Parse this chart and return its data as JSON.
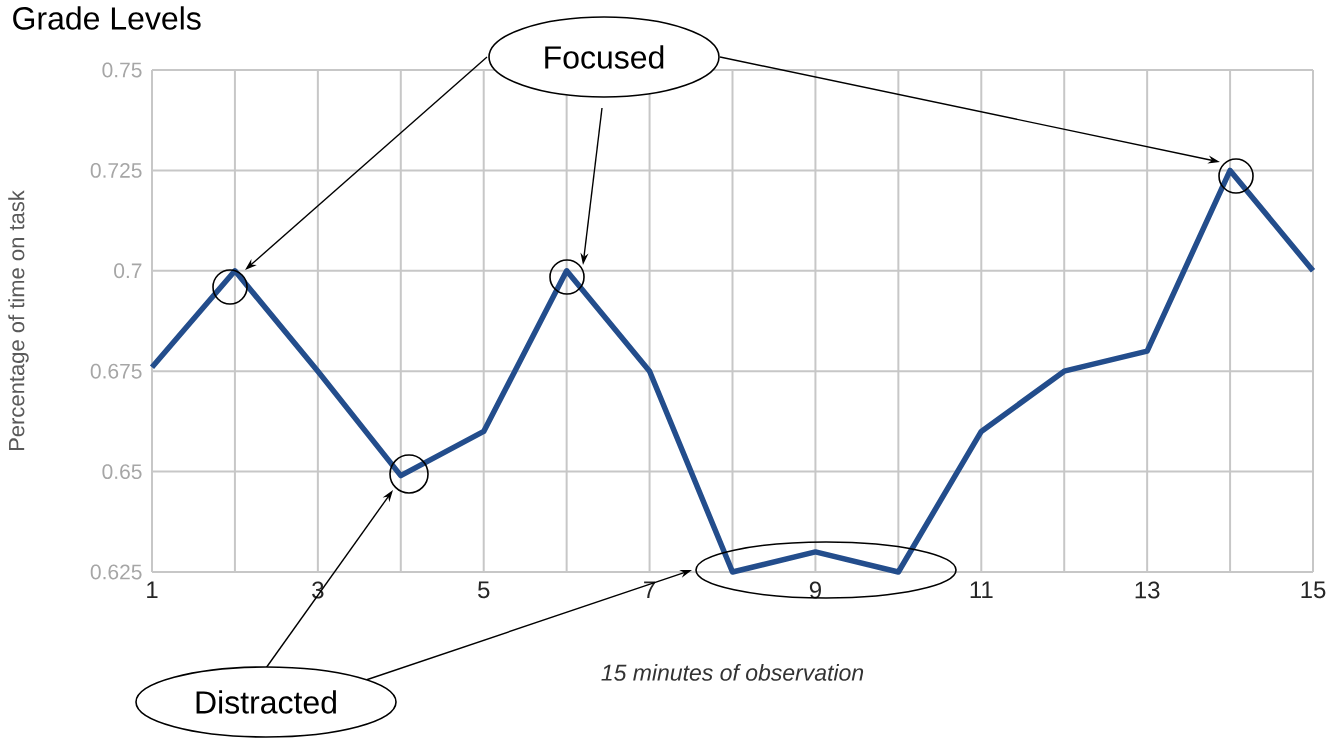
{
  "chart_data": {
    "type": "line",
    "title": "Grade Levels",
    "xlabel": "15 minutes of observation",
    "ylabel": "Percentage of time on task",
    "x": [
      1,
      2,
      3,
      4,
      5,
      6,
      7,
      8,
      9,
      10,
      11,
      12,
      13,
      14,
      15
    ],
    "series": [
      {
        "color": "#234d8c",
        "values": [
          0.676,
          0.7,
          0.675,
          0.649,
          0.66,
          0.7,
          0.675,
          0.625,
          0.63,
          0.625,
          0.66,
          0.675,
          0.68,
          0.725,
          0.7
        ]
      }
    ],
    "xlim": [
      1,
      15
    ],
    "ylim": [
      0.625,
      0.75
    ],
    "xticks": [
      1,
      {
        "value": 2,
        "label": null
      },
      3,
      {
        "value": 4,
        "label": null
      },
      5,
      {
        "value": 6,
        "label": null
      },
      7,
      {
        "value": 8,
        "label": null
      },
      9,
      {
        "value": 10,
        "label": null
      },
      11,
      {
        "value": 12,
        "label": null
      },
      13,
      {
        "value": 14,
        "label": null
      },
      15
    ],
    "yticks": [
      0.625,
      0.65,
      0.675,
      0.7,
      0.725,
      0.75
    ],
    "grid": true,
    "annotations": [
      "Focused",
      "Distracted"
    ]
  }
}
